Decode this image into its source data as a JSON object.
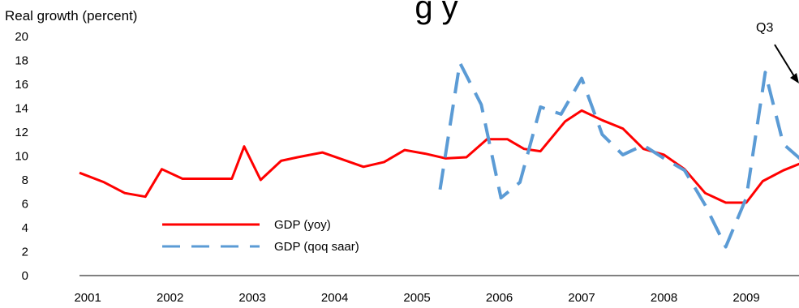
{
  "chart_data": {
    "type": "line",
    "ylabel": "Real growth (percent)",
    "ylim": [
      0,
      20
    ],
    "y_ticks": [
      "0",
      "2",
      "4",
      "6",
      "8",
      "10",
      "12",
      "14",
      "16",
      "18",
      "20"
    ],
    "x_ticks": [
      "2001",
      "2002",
      "2003",
      "2004",
      "2005",
      "2006",
      "2007",
      "2008",
      "2009"
    ],
    "x_tick_values": [
      2001.0,
      2002.0,
      2003.0,
      2004.0,
      2005.0,
      2006.0,
      2007.0,
      2008.0,
      2009.0
    ],
    "grid": false,
    "legend_position": "bottom-left",
    "series": [
      {
        "name": "GDP (yoy)",
        "color": "#ff0000",
        "style": "solid",
        "x": [
          2000.9,
          2001.2,
          2001.45,
          2001.7,
          2001.9,
          2002.15,
          2002.4,
          2002.75,
          2002.9,
          2003.1,
          2003.35,
          2003.55,
          2003.85,
          2004.1,
          2004.35,
          2004.6,
          2004.85,
          2005.1,
          2005.35,
          2005.6,
          2005.85,
          2006.1,
          2006.3,
          2006.5,
          2006.8,
          2007.0,
          2007.25,
          2007.5,
          2007.75,
          2008.0,
          2008.25,
          2008.5,
          2008.75,
          2009.0,
          2009.2,
          2009.45,
          2009.7
        ],
        "values": [
          8.6,
          7.8,
          6.9,
          6.6,
          8.9,
          8.1,
          8.1,
          8.1,
          10.8,
          8.0,
          9.6,
          9.9,
          10.3,
          9.7,
          9.1,
          9.5,
          10.5,
          10.2,
          9.8,
          9.9,
          11.4,
          11.4,
          10.6,
          10.4,
          12.9,
          13.8,
          13.0,
          12.3,
          10.6,
          10.1,
          8.9,
          6.9,
          6.1,
          6.1,
          7.9,
          8.8,
          9.5
        ]
      },
      {
        "name": "GDP (qoq saar)",
        "color": "#5b9bd5",
        "style": "dashed",
        "x": [
          2005.28,
          2005.52,
          2005.78,
          2006.02,
          2006.25,
          2006.5,
          2006.75,
          2007.0,
          2007.25,
          2007.5,
          2007.75,
          2008.0,
          2008.25,
          2008.5,
          2008.75,
          2009.0,
          2009.23,
          2009.45,
          2009.7
        ],
        "values": [
          7.2,
          17.8,
          14.3,
          6.5,
          7.8,
          14.1,
          13.5,
          16.5,
          11.8,
          10.1,
          10.9,
          9.8,
          8.8,
          5.9,
          2.4,
          6.5,
          17.0,
          11.0,
          9.5
        ]
      }
    ],
    "annotations": [
      {
        "text": "Q3",
        "arrow": true
      }
    ],
    "title_fragment": "g y"
  }
}
